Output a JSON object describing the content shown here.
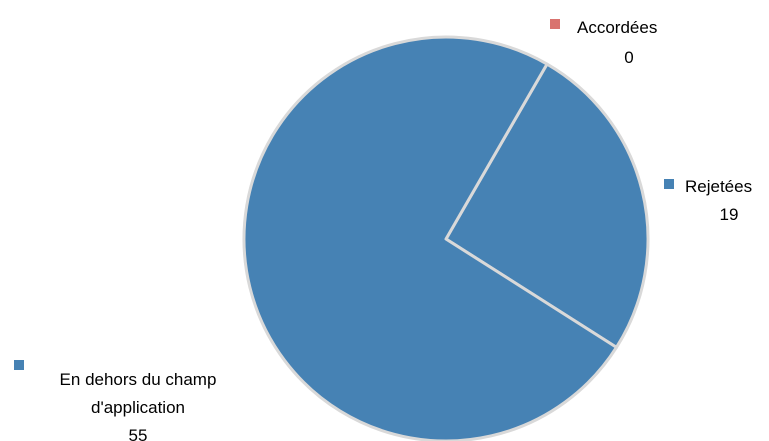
{
  "chart_data": {
    "type": "pie",
    "start_angle_deg": 30,
    "direction": "clockwise",
    "slice_border_color": "#d9d9d9",
    "slices": [
      {
        "label": "Accordées",
        "value": 0,
        "value_text": "0",
        "color": "#d9736f"
      },
      {
        "label": "Rejetées",
        "value": 19,
        "value_text": "19",
        "color": "#4682b4"
      },
      {
        "label": "En dehors du champ d'application",
        "label_line1": "En dehors du champ",
        "label_line2": "d'application",
        "value": 55,
        "value_text": "55",
        "color": "#4682b4"
      }
    ]
  }
}
